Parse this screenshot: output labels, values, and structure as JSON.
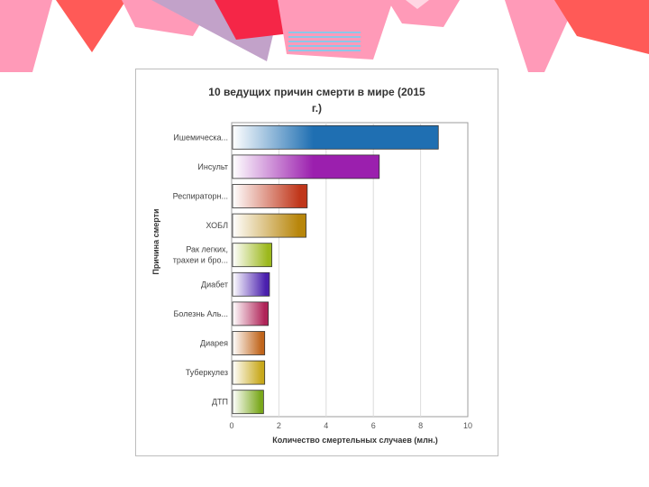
{
  "slide": {
    "decoration_colors": [
      "#ff5a57",
      "#ff9ab8",
      "#c2a2c9",
      "#f52647",
      "#8cc6e8"
    ]
  },
  "chart_data": {
    "type": "bar",
    "orientation": "horizontal",
    "title_line1": "10 ведущих причин смерти в мире (2015",
    "title_line2": "г.)",
    "xlabel": "Количество смертельных случаев (млн.)",
    "ylabel": "Причина смерти",
    "xlim": [
      0,
      10
    ],
    "xticks": [
      "0",
      "2",
      "4",
      "6",
      "8",
      "10"
    ],
    "grid": true,
    "legend": "none",
    "categories": [
      [
        "Ишемическа..."
      ],
      [
        "Инсульт"
      ],
      [
        "Респираторн..."
      ],
      [
        "ХОБЛ"
      ],
      [
        "Рак легких,",
        "трахеи и бро..."
      ],
      [
        "Диабет"
      ],
      [
        "Болезнь Аль..."
      ],
      [
        "Диарея"
      ],
      [
        "Туберкулез"
      ],
      [
        "ДТП"
      ]
    ],
    "values": [
      8.75,
      6.25,
      3.2,
      3.15,
      1.7,
      1.6,
      1.55,
      1.4,
      1.4,
      1.35
    ],
    "colors": [
      "#1f6fb2",
      "#9b1fae",
      "#c0361a",
      "#b8860b",
      "#9cb81c",
      "#4a1fae",
      "#b02458",
      "#c0641a",
      "#c8a81a",
      "#7aa81c"
    ]
  }
}
